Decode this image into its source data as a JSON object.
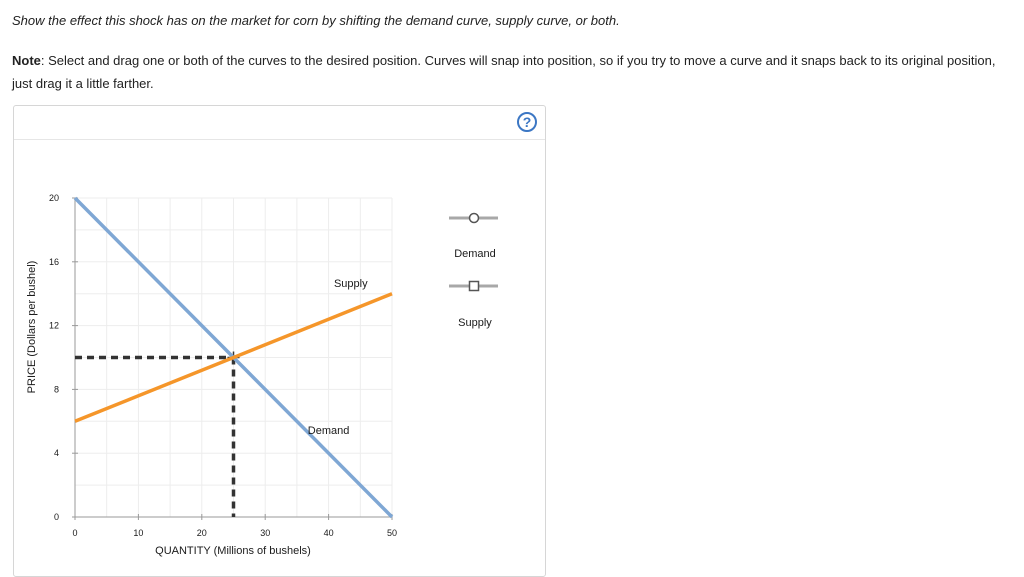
{
  "instruction": "Show the effect this shock has on the market for corn by shifting the demand curve, supply curve, or both.",
  "note": {
    "label": "Note",
    "text": ": Select and drag one or both of the curves to the desired position. Curves will snap into position, so if you try to move a curve and it snaps back to its original position, just drag it a little farther."
  },
  "help_icon": "?",
  "legend": {
    "demand": {
      "label": "Demand",
      "marker": "circle",
      "color": "#a8a8a8"
    },
    "supply": {
      "label": "Supply",
      "marker": "square",
      "color": "#a8a8a8"
    }
  },
  "chart_data": {
    "type": "line",
    "xlabel": "QUANTITY (Millions of bushels)",
    "ylabel": "PRICE (Dollars per bushel)",
    "xlim": [
      0,
      50
    ],
    "ylim": [
      0,
      20
    ],
    "x_ticks": [
      "0",
      "10",
      "20",
      "30",
      "40",
      "50"
    ],
    "y_ticks": [
      "0",
      "4",
      "8",
      "12",
      "16",
      "20"
    ],
    "series": [
      {
        "name": "Demand",
        "color": "#7fa7d4",
        "points": [
          [
            0,
            20
          ],
          [
            50,
            0
          ]
        ]
      },
      {
        "name": "Supply",
        "color": "#f5962a",
        "points": [
          [
            0,
            6
          ],
          [
            50,
            14
          ]
        ]
      }
    ],
    "equilibrium": {
      "quantity": 25,
      "price": 10
    }
  }
}
